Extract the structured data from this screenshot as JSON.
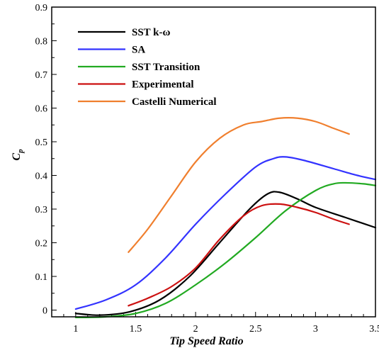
{
  "chart_data": {
    "type": "line",
    "xlabel": "Tip Speed Ratio",
    "ylabel": "C",
    "ylabel_subscript": "p",
    "xlim": [
      0.8,
      3.5
    ],
    "ylim": [
      -0.02,
      0.9
    ],
    "xticks": [
      "1",
      "1.5",
      "2",
      "2.5",
      "3",
      "3.5"
    ],
    "xtick_values": [
      1,
      1.5,
      2,
      2.5,
      3,
      3.5
    ],
    "yticks": [
      "0",
      "0.1",
      "0.2",
      "0.3",
      "0.4",
      "0.5",
      "0.6",
      "0.7",
      "0.8",
      "0.9"
    ],
    "ytick_values": [
      0,
      0.1,
      0.2,
      0.3,
      0.4,
      0.5,
      0.6,
      0.7,
      0.8,
      0.9
    ],
    "legend_position": "top-left",
    "series": [
      {
        "name": "SST k-ω",
        "color": "#000000",
        "points": [
          [
            1.0,
            -0.01
          ],
          [
            1.2,
            -0.015
          ],
          [
            1.45,
            -0.005
          ],
          [
            1.7,
            0.03
          ],
          [
            1.95,
            0.1
          ],
          [
            2.2,
            0.2
          ],
          [
            2.45,
            0.3
          ],
          [
            2.6,
            0.345
          ],
          [
            2.7,
            0.35
          ],
          [
            2.85,
            0.33
          ],
          [
            3.0,
            0.305
          ],
          [
            3.25,
            0.275
          ],
          [
            3.5,
            0.245
          ]
        ]
      },
      {
        "name": "SA",
        "color": "#3333ff",
        "points": [
          [
            1.0,
            0.003
          ],
          [
            1.25,
            0.03
          ],
          [
            1.5,
            0.075
          ],
          [
            1.75,
            0.155
          ],
          [
            2.0,
            0.255
          ],
          [
            2.25,
            0.345
          ],
          [
            2.5,
            0.425
          ],
          [
            2.65,
            0.45
          ],
          [
            2.75,
            0.455
          ],
          [
            2.9,
            0.445
          ],
          [
            3.15,
            0.42
          ],
          [
            3.35,
            0.4
          ],
          [
            3.5,
            0.388
          ]
        ]
      },
      {
        "name": "SST Transition",
        "color": "#22aa22",
        "points": [
          [
            1.0,
            -0.022
          ],
          [
            1.25,
            -0.02
          ],
          [
            1.5,
            -0.01
          ],
          [
            1.75,
            0.02
          ],
          [
            2.0,
            0.075
          ],
          [
            2.25,
            0.14
          ],
          [
            2.5,
            0.215
          ],
          [
            2.75,
            0.295
          ],
          [
            3.0,
            0.355
          ],
          [
            3.15,
            0.375
          ],
          [
            3.25,
            0.378
          ],
          [
            3.4,
            0.375
          ],
          [
            3.5,
            0.37
          ]
        ]
      },
      {
        "name": "Experimental",
        "color": "#cc1111",
        "points": [
          [
            1.44,
            0.013
          ],
          [
            1.6,
            0.035
          ],
          [
            1.8,
            0.07
          ],
          [
            2.0,
            0.125
          ],
          [
            2.2,
            0.21
          ],
          [
            2.4,
            0.28
          ],
          [
            2.55,
            0.31
          ],
          [
            2.7,
            0.315
          ],
          [
            2.85,
            0.305
          ],
          [
            3.0,
            0.29
          ],
          [
            3.15,
            0.27
          ],
          [
            3.28,
            0.255
          ]
        ]
      },
      {
        "name": "Castelli Numerical",
        "color": "#f07f2e",
        "points": [
          [
            1.44,
            0.172
          ],
          [
            1.6,
            0.24
          ],
          [
            1.8,
            0.34
          ],
          [
            2.0,
            0.44
          ],
          [
            2.2,
            0.51
          ],
          [
            2.4,
            0.55
          ],
          [
            2.55,
            0.56
          ],
          [
            2.7,
            0.57
          ],
          [
            2.85,
            0.57
          ],
          [
            3.0,
            0.56
          ],
          [
            3.15,
            0.54
          ],
          [
            3.28,
            0.523
          ]
        ]
      }
    ]
  }
}
